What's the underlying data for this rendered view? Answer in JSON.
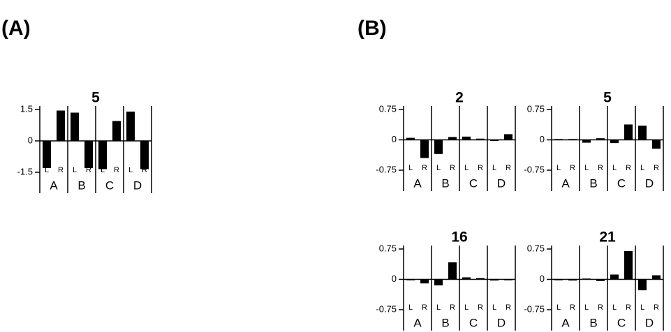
{
  "panel_labels": [
    "(A)",
    "(B)"
  ],
  "chart_data": [
    {
      "type": "bar",
      "title": "5",
      "categories": [
        "L",
        "R",
        "L",
        "R",
        "L",
        "R",
        "L",
        "R"
      ],
      "groups": [
        "A",
        "B",
        "C",
        "D"
      ],
      "values": [
        -1.3,
        1.45,
        1.35,
        -1.3,
        -1.35,
        0.95,
        1.4,
        -1.35
      ],
      "color": "#000000",
      "ylim": [
        -1.5,
        1.5
      ],
      "yticks": [
        -1.5,
        0,
        1.5
      ]
    },
    {
      "type": "bar",
      "title": "2",
      "categories": [
        "L",
        "R",
        "L",
        "R",
        "L",
        "R",
        "L",
        "R"
      ],
      "groups": [
        "A",
        "B",
        "C",
        "D"
      ],
      "values": [
        0.05,
        -0.45,
        -0.35,
        0.07,
        0.08,
        0.03,
        -0.02,
        0.14
      ],
      "color": "#000000",
      "ylim": [
        -0.75,
        0.75
      ],
      "yticks": [
        -0.75,
        0,
        0.75
      ]
    },
    {
      "type": "bar",
      "title": "5",
      "categories": [
        "L",
        "R",
        "L",
        "R",
        "L",
        "R",
        "L",
        "R"
      ],
      "groups": [
        "A",
        "B",
        "C",
        "D"
      ],
      "values": [
        0.02,
        0.02,
        -0.07,
        0.04,
        -0.08,
        0.38,
        0.35,
        -0.22
      ],
      "color": "#000000",
      "ylim": [
        -0.75,
        0.75
      ],
      "yticks": [
        -0.75,
        0,
        0.75
      ]
    },
    {
      "type": "bar",
      "title": "16",
      "categories": [
        "L",
        "R",
        "L",
        "R",
        "L",
        "R",
        "L",
        "R"
      ],
      "groups": [
        "A",
        "B",
        "C",
        "D"
      ],
      "values": [
        0.0,
        -0.1,
        -0.15,
        0.42,
        0.05,
        0.03,
        -0.03,
        -0.02
      ],
      "color": "#000000",
      "ylim": [
        -0.75,
        0.75
      ],
      "yticks": [
        -0.75,
        0,
        0.75
      ]
    },
    {
      "type": "bar",
      "title": "21",
      "categories": [
        "L",
        "R",
        "L",
        "R",
        "L",
        "R",
        "L",
        "R"
      ],
      "groups": [
        "A",
        "B",
        "C",
        "D"
      ],
      "values": [
        0.0,
        -0.03,
        0.02,
        -0.04,
        0.12,
        0.7,
        -0.27,
        0.1
      ],
      "color": "#000000",
      "ylim": [
        -0.75,
        0.75
      ],
      "yticks": [
        -0.75,
        0,
        0.75
      ]
    }
  ]
}
